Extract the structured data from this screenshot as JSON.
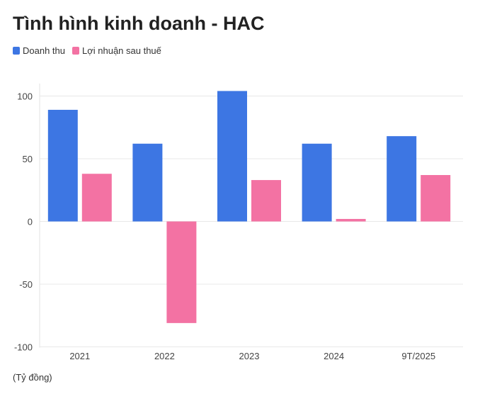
{
  "chart_data": {
    "type": "bar",
    "title": "Tình hình kinh doanh - HAC",
    "unit_note": "(Tỷ đồng)",
    "categories": [
      "2021",
      "2022",
      "2023",
      "2024",
      "9T/2025"
    ],
    "series": [
      {
        "name": "Doanh thu",
        "color": "#3d76e3",
        "values": [
          89,
          62,
          104,
          62,
          68
        ]
      },
      {
        "name": "Lợi nhuận sau thuế",
        "color": "#f372a3",
        "values": [
          38,
          -81,
          33,
          2,
          37
        ]
      }
    ],
    "ylim": [
      -100,
      110
    ],
    "yticks": [
      100,
      50,
      0,
      -50,
      -100
    ],
    "grid": true,
    "legend_position": "top-left"
  }
}
